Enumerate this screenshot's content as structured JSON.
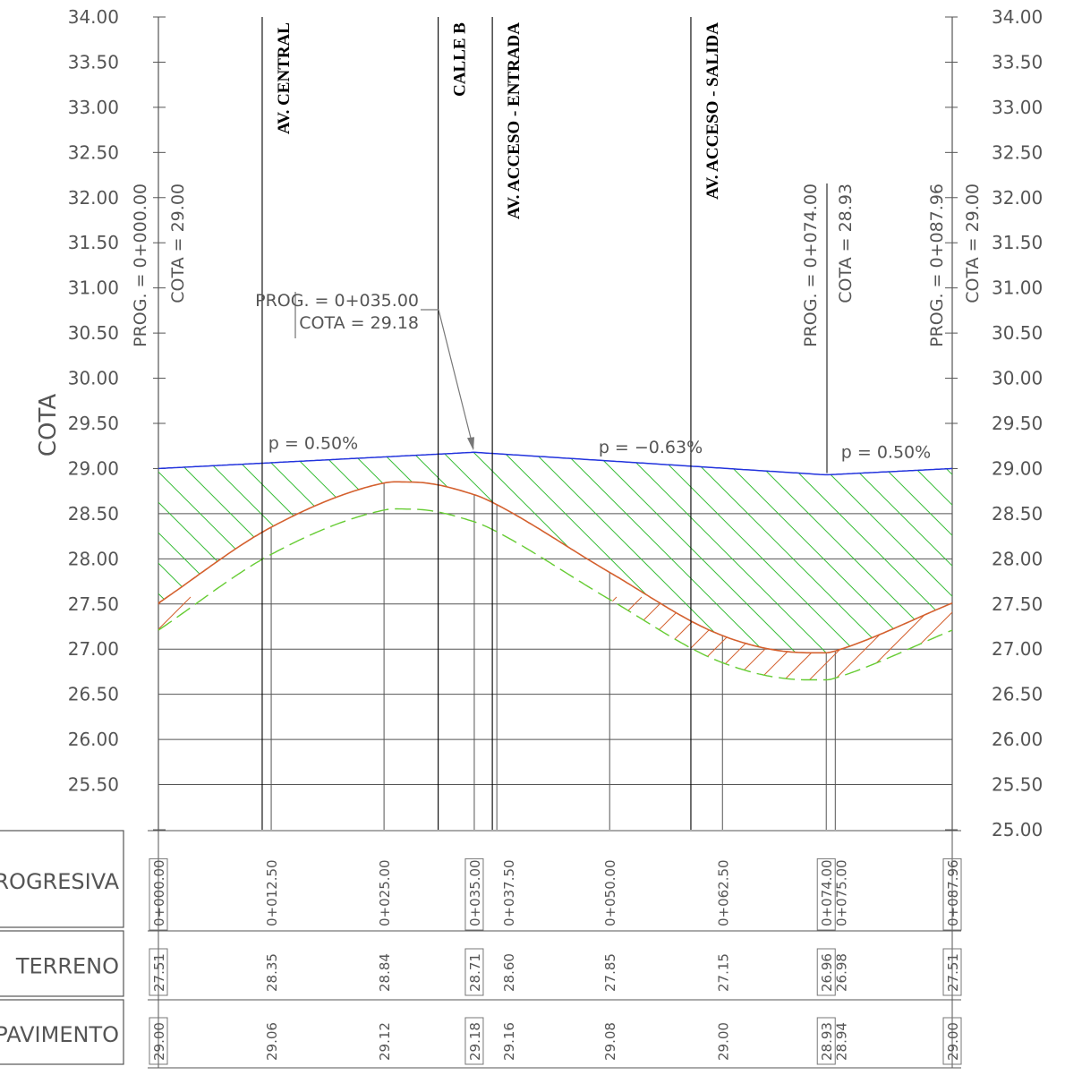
{
  "y_axis_label": "COTA",
  "streets": [
    {
      "name": "AV. CENTRAL",
      "station": 11.5
    },
    {
      "name": "CALLE B",
      "station": 31.0
    },
    {
      "name": "AV. ACCESO - ENTRADA",
      "station": 37.0
    },
    {
      "name": "AV.   ACCESO - SALIDA",
      "station": 59.0
    }
  ],
  "annotations": {
    "start": {
      "prog": "PROG.  =  0+000.00",
      "cota": "COTA  =  29.00"
    },
    "mid": {
      "prog": "PROG.  =  0+035.00",
      "cota": "COTA  =  29.18"
    },
    "pi2": {
      "prog": "PROG.  =  0+074.00",
      "cota": "COTA  =  28.93"
    },
    "end": {
      "prog": "PROG.  =  0+087.96",
      "cota": "COTA  =  29.00"
    }
  },
  "slopes": [
    {
      "label": "p  =  0.50%"
    },
    {
      "label": "p  =  −0.63%"
    },
    {
      "label": "p  =  0.50%"
    }
  ],
  "table": {
    "row_labels": [
      "PROGRESIVA",
      "TERRENO",
      "PAVIMENTO"
    ],
    "columns": [
      {
        "station": 0,
        "prog": "0+000.00",
        "terreno": "27.51",
        "pavimento": "29.00",
        "boxed": true
      },
      {
        "station": 12.5,
        "prog": "0+012.50",
        "terreno": "28.35",
        "pavimento": "29.06",
        "boxed": false
      },
      {
        "station": 25,
        "prog": "0+025.00",
        "terreno": "28.84",
        "pavimento": "29.12",
        "boxed": false
      },
      {
        "station": 35,
        "prog": "0+035.00",
        "terreno": "28.71",
        "pavimento": "29.18",
        "boxed": true
      },
      {
        "station": 37.5,
        "prog": "0+037.50",
        "terreno": "28.60",
        "pavimento": "29.16",
        "boxed": false
      },
      {
        "station": 50,
        "prog": "0+050.00",
        "terreno": "27.85",
        "pavimento": "29.08",
        "boxed": false
      },
      {
        "station": 62.5,
        "prog": "0+062.50",
        "terreno": "27.15",
        "pavimento": "29.00",
        "boxed": false
      },
      {
        "station": 74,
        "prog": "0+074.00",
        "terreno": "26.96",
        "pavimento": "28.93",
        "boxed": true
      },
      {
        "station": 75,
        "prog": "0+075.00",
        "terreno": "26.98",
        "pavimento": "28.94",
        "boxed": false
      },
      {
        "station": 87.96,
        "prog": "0+087.96",
        "terreno": "27.51",
        "pavimento": "29.00",
        "boxed": true
      }
    ]
  },
  "chart_data": {
    "type": "line",
    "ylabel": "COTA",
    "ylim": [
      25.0,
      34.0
    ],
    "y_ticks": [
      "34.00",
      "33.50",
      "33.00",
      "32.50",
      "32.00",
      "31.50",
      "31.00",
      "30.50",
      "30.00",
      "29.50",
      "29.00",
      "28.50",
      "28.00",
      "27.50",
      "27.00",
      "26.50",
      "26.00",
      "25.50",
      "25.00"
    ],
    "x_range": [
      0,
      87.96
    ],
    "series": [
      {
        "values_x": [
          0,
          35,
          74,
          87.96
        ],
        "values_y": [
          29.0,
          29.18,
          28.93,
          29.0
        ],
        "color": "#2233dd"
      },
      {
        "values_x": [
          0,
          12.5,
          25,
          28,
          35,
          37.5,
          50,
          62.5,
          72,
          74,
          75,
          87.96
        ],
        "values_y": [
          27.51,
          28.35,
          28.84,
          28.85,
          28.71,
          28.6,
          27.85,
          27.15,
          26.96,
          26.96,
          26.98,
          27.51
        ],
        "color": "#d4602e"
      },
      {
        "values_x": [
          0,
          12.5,
          25,
          28,
          35,
          37.5,
          50,
          62.5,
          72,
          74,
          75,
          87.96
        ],
        "values_y": [
          27.21,
          28.05,
          28.54,
          28.55,
          28.41,
          28.3,
          27.55,
          26.85,
          26.66,
          26.66,
          26.68,
          27.21
        ],
        "color": "#66cc33"
      }
    ]
  },
  "colors": {
    "pavimento": "#2233dd",
    "terreno": "#d4602e",
    "subrasante": "#66cc33",
    "hatch": "#33bb33",
    "grid": "#555555"
  }
}
